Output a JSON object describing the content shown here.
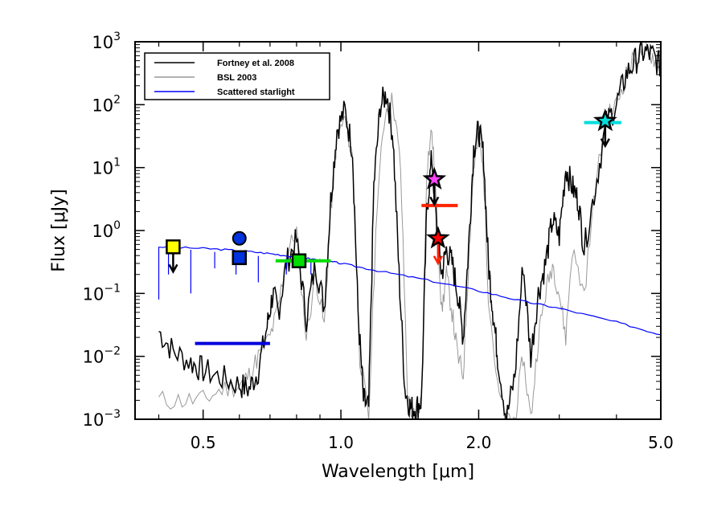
{
  "chart_data": {
    "type": "line",
    "xscale": "log",
    "yscale": "log",
    "xlim": [
      0.355,
      5.0
    ],
    "ylim": [
      0.001,
      1000
    ],
    "xlabel": "Wavelength [μm]",
    "ylabel": "Flux [μJy]",
    "xticks": [
      {
        "value": 0.5,
        "label": "0.5"
      },
      {
        "value": 1.0,
        "label": "1.0"
      },
      {
        "value": 2.0,
        "label": "2.0"
      },
      {
        "value": 5.0,
        "label": "5.0"
      }
    ],
    "yticks": [
      {
        "value": 0.001,
        "base": "10",
        "exp": "−3"
      },
      {
        "value": 0.01,
        "base": "10",
        "exp": "−2"
      },
      {
        "value": 0.1,
        "base": "10",
        "exp": "−1"
      },
      {
        "value": 1,
        "base": "10",
        "exp": "0"
      },
      {
        "value": 10,
        "base": "10",
        "exp": "1"
      },
      {
        "value": 100,
        "base": "10",
        "exp": "2"
      },
      {
        "value": 1000,
        "base": "10",
        "exp": "3"
      }
    ],
    "legend": {
      "position": "top-left",
      "entries": [
        {
          "label": "Fortney et al. 2008",
          "color": "#000000"
        },
        {
          "label": "BSL 2003",
          "color": "#999999"
        },
        {
          "label": "Scattered starlight",
          "color": "#0000ff"
        }
      ]
    },
    "series": [
      {
        "name": "Fortney et al. 2008",
        "color": "#000000",
        "x": [
          0.4,
          0.43,
          0.47,
          0.5,
          0.55,
          0.6,
          0.63,
          0.66,
          0.69,
          0.71,
          0.73,
          0.76,
          0.8,
          0.84,
          0.88,
          0.92,
          0.95,
          0.98,
          1.02,
          1.06,
          1.09,
          1.12,
          1.15,
          1.18,
          1.22,
          1.26,
          1.3,
          1.34,
          1.38,
          1.42,
          1.46,
          1.5,
          1.54,
          1.58,
          1.62,
          1.66,
          1.7,
          1.75,
          1.8,
          1.85,
          1.9,
          1.95,
          2.0,
          2.05,
          2.1,
          2.15,
          2.2,
          2.3,
          2.4,
          2.5,
          2.6,
          2.7,
          2.8,
          2.9,
          3.0,
          3.1,
          3.2,
          3.3,
          3.4,
          3.6,
          3.8,
          4.0,
          4.2,
          4.4,
          4.6,
          4.8,
          5.0
        ],
        "y": [
          0.025,
          0.012,
          0.008,
          0.006,
          0.0045,
          0.0035,
          0.003,
          0.006,
          0.03,
          0.1,
          0.05,
          0.3,
          0.7,
          0.04,
          0.3,
          0.06,
          3,
          40,
          80,
          20,
          0.05,
          0.002,
          0.0015,
          5,
          100,
          150,
          30,
          0.2,
          0.003,
          0.0015,
          0.0015,
          0.002,
          2,
          15,
          1,
          0.2,
          0.5,
          0.3,
          0.1,
          0.02,
          0.5,
          20,
          40,
          15,
          0.3,
          0.05,
          0.01,
          0.001,
          0.005,
          0.3,
          0.01,
          0.1,
          0.3,
          1.5,
          0.8,
          10,
          5,
          3,
          0.5,
          5,
          50,
          100,
          300,
          500,
          700,
          600,
          400
        ]
      },
      {
        "name": "BSL 2003",
        "color": "#999999",
        "x": [
          0.4,
          0.45,
          0.5,
          0.55,
          0.6,
          0.63,
          0.66,
          0.7,
          0.73,
          0.76,
          0.8,
          0.84,
          0.88,
          0.92,
          0.95,
          0.98,
          1.02,
          1.06,
          1.1,
          1.15,
          1.2,
          1.25,
          1.3,
          1.35,
          1.4,
          1.45,
          1.5,
          1.54,
          1.58,
          1.62,
          1.66,
          1.7,
          1.75,
          1.8,
          1.85,
          1.9,
          1.95,
          2.0,
          2.05,
          2.1,
          2.2,
          2.3,
          2.4,
          2.5,
          2.6,
          2.7,
          2.8,
          2.9,
          3.0,
          3.1,
          3.2,
          3.4,
          3.6,
          3.8,
          4.0,
          4.2,
          4.4,
          4.6,
          4.8,
          5.0
        ],
        "y": [
          0.002,
          0.002,
          0.002,
          0.003,
          0.0035,
          0.005,
          0.01,
          0.02,
          0.06,
          0.4,
          1,
          0.02,
          0.2,
          0.03,
          2,
          30,
          60,
          15,
          0.01,
          0.001,
          3,
          80,
          120,
          10,
          0.002,
          0.001,
          0.002,
          10,
          40,
          2,
          0.05,
          0.2,
          0.05,
          0.01,
          0.005,
          0.3,
          10,
          30,
          8,
          0.1,
          0.003,
          0.001,
          0.001,
          0.01,
          0.001,
          0.02,
          0.1,
          0.3,
          0.1,
          0.02,
          0.5,
          0.1,
          5,
          60,
          100,
          300,
          600,
          800,
          600,
          300
        ]
      },
      {
        "name": "Scattered starlight",
        "color": "#0000ff",
        "x": [
          0.4,
          0.5,
          0.6,
          0.7,
          0.8,
          0.9,
          1.0,
          1.2,
          1.5,
          2.0,
          2.5,
          3.0,
          4.0,
          5.0
        ],
        "y": [
          0.55,
          0.52,
          0.48,
          0.43,
          0.38,
          0.34,
          0.3,
          0.23,
          0.17,
          0.11,
          0.075,
          0.058,
          0.035,
          0.022
        ],
        "absorption_lines": [
          {
            "x": 0.4,
            "y": 0.08
          },
          {
            "x": 0.42,
            "y": 0.2
          },
          {
            "x": 0.47,
            "y": 0.1
          },
          {
            "x": 0.53,
            "y": 0.25
          },
          {
            "x": 0.59,
            "y": 0.2
          },
          {
            "x": 0.66,
            "y": 0.15
          },
          {
            "x": 0.76,
            "y": 0.2
          },
          {
            "x": 0.82,
            "y": 0.25
          },
          {
            "x": 0.86,
            "y": 0.2
          }
        ]
      }
    ],
    "band_limits": [
      {
        "x0": 0.48,
        "x1": 0.7,
        "y": 0.016,
        "color": "#0000dd"
      },
      {
        "x0": 0.72,
        "x1": 0.95,
        "y": 0.33,
        "color": "#00dd00"
      },
      {
        "x0": 1.5,
        "x1": 1.8,
        "y": 2.5,
        "color": "#ff2200"
      },
      {
        "x0": 3.4,
        "x1": 4.1,
        "y": 52,
        "color": "#00dddd"
      }
    ],
    "photometry": [
      {
        "x": 0.43,
        "y": 0.55,
        "marker": "square",
        "color": "#ffff00",
        "upper_limit": true,
        "arrow_color": "#000000"
      },
      {
        "x": 0.6,
        "y": 0.75,
        "marker": "circle",
        "color": "#0033dd",
        "upper_limit": false
      },
      {
        "x": 0.6,
        "y": 0.37,
        "marker": "square",
        "color": "#0033dd",
        "upper_limit": false
      },
      {
        "x": 0.81,
        "y": 0.33,
        "marker": "square",
        "color": "#00dd00",
        "upper_limit": false
      },
      {
        "x": 1.6,
        "y": 6.5,
        "marker": "star",
        "color": "#ff44ff",
        "upper_limit": true,
        "arrow_color": "#000000"
      },
      {
        "x": 1.63,
        "y": 0.75,
        "marker": "star",
        "color": "#ff0000",
        "upper_limit": true,
        "arrow_color": "#ff2200"
      },
      {
        "x": 3.78,
        "y": 55,
        "marker": "star",
        "color": "#00dddd",
        "upper_limit": true,
        "arrow_color": "#000000"
      }
    ]
  }
}
